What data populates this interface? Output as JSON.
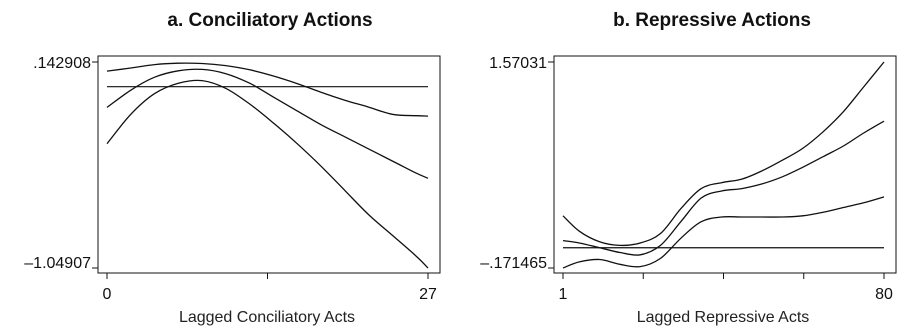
{
  "chart_data": [
    {
      "type": "line",
      "title": "a. Conciliatory Actions",
      "xlabel": "Lagged Conciliatory Acts",
      "ylabel": "",
      "xlim": [
        0,
        27
      ],
      "ylim": [
        -1.04907,
        0.142908
      ],
      "x_ticks": [
        0,
        13.5,
        27
      ],
      "x_tick_labels": [
        "0",
        "",
        "27"
      ],
      "y_tick_labels": [
        ".142908",
        "-1.04907"
      ],
      "grid": false,
      "reference_line_y": 0.0,
      "series": [
        {
          "x": [
            0,
            2,
            4,
            6,
            8,
            10,
            12,
            14,
            16,
            18,
            20,
            22,
            24,
            26,
            27
          ],
          "values": [
            0.09,
            0.108,
            0.128,
            0.136,
            0.134,
            0.122,
            0.098,
            0.062,
            0.018,
            -0.032,
            -0.078,
            -0.118,
            -0.16,
            -0.168,
            -0.17
          ]
        },
        {
          "x": [
            0,
            2,
            4,
            6,
            8,
            10,
            12,
            14,
            16,
            18,
            20,
            22,
            24,
            26,
            27
          ],
          "values": [
            -0.12,
            -0.02,
            0.055,
            0.092,
            0.1,
            0.075,
            0.02,
            -0.06,
            -0.14,
            -0.22,
            -0.29,
            -0.36,
            -0.43,
            -0.5,
            -0.53
          ]
        },
        {
          "x": [
            0,
            2,
            4,
            6,
            8,
            10,
            12,
            14,
            16,
            18,
            20,
            22,
            24,
            26,
            27
          ],
          "values": [
            -0.33,
            -0.16,
            -0.04,
            0.02,
            0.035,
            -0.01,
            -0.1,
            -0.21,
            -0.33,
            -0.46,
            -0.6,
            -0.74,
            -0.86,
            -0.98,
            -1.04907
          ]
        }
      ]
    },
    {
      "type": "line",
      "title": "b. Repressive Actions",
      "xlabel": "Lagged Repressive Acts",
      "ylabel": "",
      "xlim": [
        1,
        80
      ],
      "ylim": [
        -0.171465,
        1.57031
      ],
      "x_ticks": [
        1,
        20.75,
        40.5,
        60.25,
        80
      ],
      "x_tick_labels": [
        "1",
        "",
        "",
        "",
        "80"
      ],
      "y_tick_labels": [
        "1.57031",
        "-.171465"
      ],
      "grid": false,
      "reference_line_y": 0.0,
      "series": [
        {
          "x": [
            1,
            5,
            10,
            15,
            20,
            25,
            30,
            35,
            40,
            45,
            50,
            55,
            60,
            65,
            70,
            75,
            80
          ],
          "values": [
            0.27,
            0.14,
            0.05,
            0.02,
            0.04,
            0.12,
            0.33,
            0.5,
            0.55,
            0.58,
            0.65,
            0.74,
            0.84,
            0.98,
            1.15,
            1.36,
            1.57031
          ]
        },
        {
          "x": [
            1,
            5,
            10,
            15,
            20,
            25,
            30,
            35,
            40,
            45,
            50,
            55,
            60,
            65,
            70,
            75,
            80
          ],
          "values": [
            0.06,
            0.04,
            0.0,
            -0.04,
            -0.06,
            0.02,
            0.22,
            0.42,
            0.48,
            0.5,
            0.54,
            0.6,
            0.68,
            0.77,
            0.86,
            0.97,
            1.07
          ]
        },
        {
          "x": [
            1,
            5,
            10,
            15,
            20,
            25,
            30,
            35,
            40,
            45,
            50,
            55,
            60,
            65,
            70,
            75,
            80
          ],
          "values": [
            -0.171465,
            -0.12,
            -0.1,
            -0.14,
            -0.16,
            -0.09,
            0.08,
            0.22,
            0.26,
            0.26,
            0.26,
            0.26,
            0.27,
            0.3,
            0.34,
            0.38,
            0.43
          ]
        }
      ]
    }
  ]
}
